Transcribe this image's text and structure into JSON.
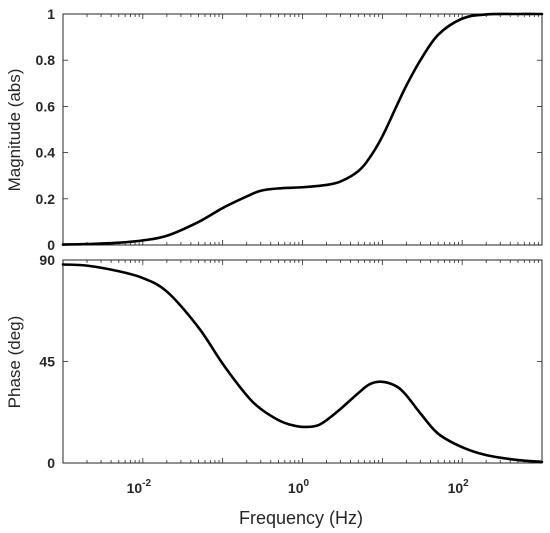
{
  "chart_data": [
    {
      "type": "line",
      "title": "",
      "xlabel": "",
      "ylabel": "Magnitude (abs)",
      "xscale": "log",
      "xlim": [
        0.001,
        1000
      ],
      "ylim": [
        0,
        1
      ],
      "yticks": [
        "0",
        "0.2",
        "0.4",
        "0.6",
        "0.8",
        "1"
      ],
      "ytick_values": [
        0,
        0.2,
        0.4,
        0.6,
        0.8,
        1
      ],
      "grid": false,
      "series": [
        {
          "color": "#000000",
          "x": [
            0.001,
            0.002,
            0.005,
            0.01,
            0.02,
            0.05,
            0.1,
            0.2,
            0.3,
            0.5,
            1,
            2,
            3,
            5,
            7,
            10,
            15,
            20,
            30,
            50,
            100,
            200,
            500,
            1000
          ],
          "y": [
            0.002,
            0.004,
            0.01,
            0.02,
            0.04,
            0.1,
            0.16,
            0.21,
            0.235,
            0.245,
            0.25,
            0.26,
            0.275,
            0.32,
            0.38,
            0.47,
            0.6,
            0.69,
            0.8,
            0.91,
            0.98,
            0.998,
            1.0,
            1.0
          ]
        }
      ]
    },
    {
      "type": "line",
      "title": "",
      "xlabel": "Frequency (Hz)",
      "ylabel": "Phase (deg)",
      "xscale": "log",
      "xlim": [
        0.001,
        1000
      ],
      "ylim": [
        0,
        90
      ],
      "xticks": [
        {
          "value": 0.01,
          "base": "10",
          "exp": "-2"
        },
        {
          "value": 1,
          "base": "10",
          "exp": "0"
        },
        {
          "value": 100,
          "base": "10",
          "exp": "2"
        }
      ],
      "yticks": [
        "0",
        "45",
        "90"
      ],
      "ytick_values": [
        0,
        45,
        90
      ],
      "grid": false,
      "series": [
        {
          "color": "#000000",
          "x": [
            0.001,
            0.002,
            0.005,
            0.01,
            0.02,
            0.05,
            0.1,
            0.2,
            0.3,
            0.5,
            0.7,
            1,
            1.5,
            2,
            3,
            5,
            7,
            10,
            15,
            20,
            30,
            50,
            100,
            200,
            500,
            1000
          ],
          "y": [
            88,
            87.5,
            85,
            82,
            76,
            60,
            44,
            30,
            24,
            19,
            17,
            16,
            16.5,
            19,
            24,
            31,
            35,
            36,
            34,
            30,
            22,
            13,
            7,
            3.5,
            1.3,
            0.5
          ]
        }
      ]
    }
  ]
}
